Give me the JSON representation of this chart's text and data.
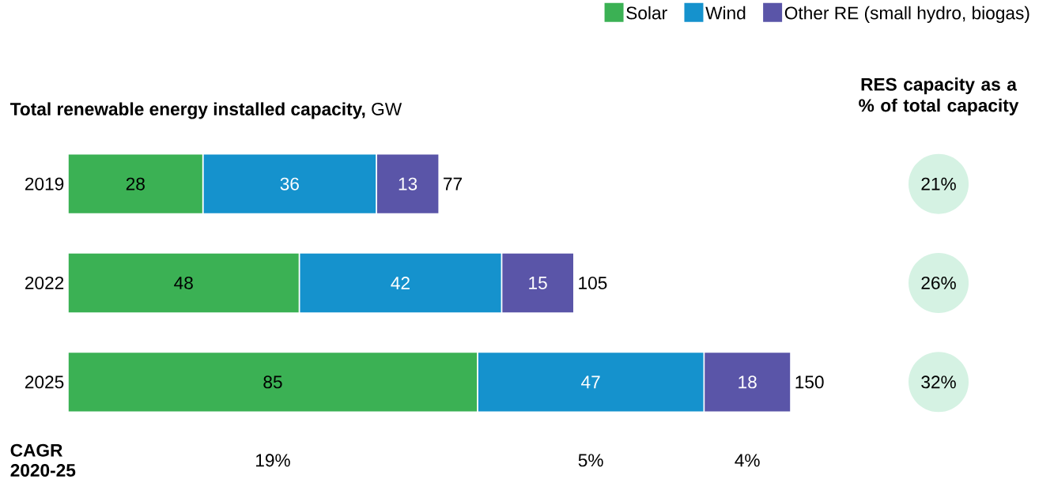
{
  "chart_data": {
    "type": "bar",
    "orientation": "horizontal",
    "stacked": true,
    "title": "**Total renewable energy installed capacity,** GW",
    "categories": [
      "2019",
      "2022",
      "2025"
    ],
    "series": [
      {
        "name": "Solar",
        "color": "#3bb154",
        "values": [
          28,
          48,
          85
        ]
      },
      {
        "name": "Wind",
        "color": "#1592cd",
        "values": [
          36,
          42,
          47
        ]
      },
      {
        "name": "Other RE (small hydro, biogas)",
        "color": "#5a55a8",
        "values": [
          13,
          15,
          18
        ]
      }
    ],
    "data_labels": true,
    "totals": [
      "77",
      "105",
      "150"
    ],
    "legend": "top right",
    "tick_labels": "y",
    "annotations": [
      "RES capacity as a % of total capacity",
      "21%",
      "26%",
      "32%",
      "CAGR 2020-25",
      "19%",
      "5%",
      "4%"
    ]
  }
}
